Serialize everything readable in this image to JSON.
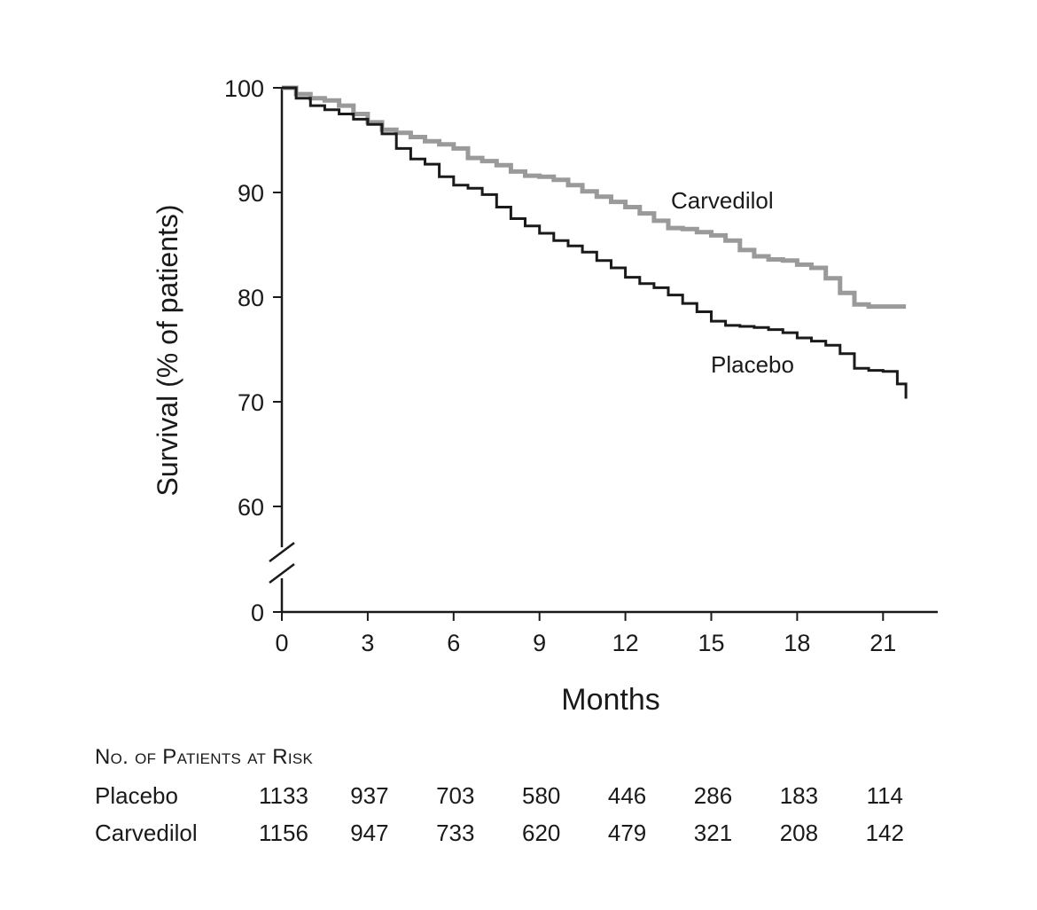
{
  "chart_data": {
    "type": "line",
    "xlabel": "Months",
    "ylabel": "Survival (% of patients)",
    "xlim": [
      0,
      22
    ],
    "ylim": [
      0,
      100
    ],
    "axis_break": "between 0 and 60",
    "x_ticks": [
      0,
      3,
      6,
      9,
      12,
      15,
      18,
      21
    ],
    "y_ticks": [
      0,
      60,
      70,
      80,
      90,
      100
    ],
    "x_tick_labels": [
      "0",
      "3",
      "6",
      "9",
      "12",
      "15",
      "18",
      "21"
    ],
    "y_tick_labels": [
      "0",
      "60",
      "70",
      "80",
      "90",
      "100"
    ],
    "grid": false,
    "series": [
      {
        "name": "Carvedilol",
        "color": "#9a9a9a",
        "x": [
          0,
          0.5,
          1,
          1.5,
          2,
          2.5,
          3,
          3.5,
          4,
          4.5,
          5,
          5.5,
          6,
          6.5,
          7,
          7.5,
          8,
          8.5,
          9,
          9.5,
          10,
          10.5,
          11,
          11.5,
          12,
          12.5,
          13,
          13.5,
          14,
          14.5,
          15,
          15.5,
          16,
          16.5,
          17,
          17.5,
          18,
          18.5,
          19,
          19.5,
          20,
          20.5,
          21,
          21.5,
          21.8
        ],
        "y": [
          100,
          99.4,
          99.0,
          98.8,
          98.3,
          97.5,
          96.7,
          96.0,
          95.7,
          95.3,
          94.9,
          94.6,
          94.2,
          93.3,
          93.0,
          92.6,
          92.0,
          91.6,
          91.5,
          91.2,
          90.7,
          90.1,
          89.6,
          89.1,
          88.6,
          88.0,
          87.3,
          86.6,
          86.5,
          86.2,
          85.9,
          85.4,
          84.5,
          83.9,
          83.6,
          83.5,
          83.1,
          82.8,
          81.8,
          80.4,
          79.3,
          79.1,
          79.1,
          79.1,
          79.1
        ]
      },
      {
        "name": "Placebo",
        "color": "#1a1a1a",
        "x": [
          0,
          0.5,
          1,
          1.5,
          2,
          2.5,
          3,
          3.5,
          4,
          4.5,
          5,
          5.5,
          6,
          6.5,
          7,
          7.5,
          8,
          8.5,
          9,
          9.5,
          10,
          10.5,
          11,
          11.5,
          12,
          12.5,
          13,
          13.5,
          14,
          14.5,
          15,
          15.5,
          16,
          16.5,
          17,
          17.5,
          18,
          18.5,
          19,
          19.5,
          20,
          20.5,
          21,
          21.5,
          21.8
        ],
        "y": [
          100,
          99.0,
          98.3,
          97.9,
          97.5,
          97.0,
          96.5,
          95.6,
          94.2,
          93.2,
          92.7,
          91.5,
          90.7,
          90.4,
          89.8,
          88.6,
          87.5,
          86.8,
          86.1,
          85.4,
          84.9,
          84.3,
          83.5,
          82.8,
          81.9,
          81.3,
          80.9,
          80.2,
          79.4,
          78.6,
          77.7,
          77.3,
          77.2,
          77.1,
          76.9,
          76.6,
          76.1,
          75.8,
          75.4,
          74.6,
          73.2,
          73.0,
          72.9,
          71.7,
          70.3
        ]
      }
    ]
  },
  "risk_table": {
    "title": "No. of Patients at Risk",
    "rows": [
      {
        "label": "Placebo",
        "values": [
          "1133",
          "937",
          "703",
          "580",
          "446",
          "286",
          "183",
          "114"
        ]
      },
      {
        "label": "Carvedilol",
        "values": [
          "1156",
          "947",
          "733",
          "620",
          "479",
          "321",
          "208",
          "142"
        ]
      }
    ]
  }
}
